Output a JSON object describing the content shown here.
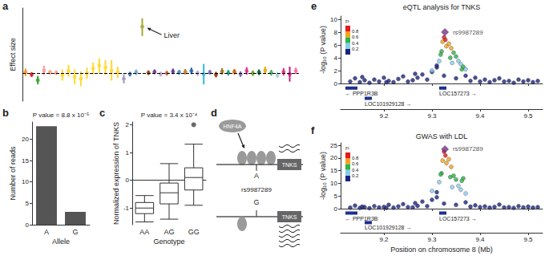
{
  "chart_data": [
    {
      "panel": "a",
      "type": "scatter",
      "ylabel": "Effect size",
      "categories": [
        null,
        null,
        null,
        null,
        null,
        null,
        null,
        null,
        null,
        null,
        null,
        null,
        null,
        null,
        null,
        null,
        null,
        null,
        null,
        null,
        null,
        null,
        null,
        null,
        null,
        null,
        null,
        null,
        null,
        null,
        null,
        null,
        null,
        null,
        null,
        null,
        null,
        null,
        null,
        null,
        null,
        null,
        null,
        null,
        null
      ],
      "values": [
        0.02,
        -0.03,
        -0.15,
        0.06,
        0.02,
        0.01,
        -0.04,
        0.05,
        -0.08,
        -0.12,
        0.0,
        0.1,
        0.16,
        0.12,
        0.06,
        0.02,
        -0.12,
        -0.02,
        0.02,
        1.0,
        0.01,
        0.03,
        -0.02,
        0.0,
        0.04,
        0.02,
        0.03,
        0.05,
        0.0,
        -0.02,
        0.02,
        -0.03,
        0.04,
        0.01,
        0.03,
        -0.02,
        0.05,
        0.0,
        0.02,
        0.06,
        0.01,
        -0.04,
        0.03,
        -0.02,
        0.05
      ],
      "lower": [
        -0.06,
        -0.08,
        -0.24,
        -0.04,
        -0.03,
        -0.04,
        -0.16,
        -0.08,
        -0.24,
        -0.28,
        -0.12,
        -0.03,
        0.0,
        -0.04,
        -0.16,
        -0.1,
        -0.22,
        -0.07,
        -0.04,
        0.8,
        -0.04,
        -0.02,
        -0.07,
        -0.05,
        -0.02,
        -0.03,
        -0.03,
        -0.02,
        -0.06,
        -0.24,
        -0.03,
        -0.09,
        -0.03,
        -0.05,
        -0.03,
        -0.08,
        -0.03,
        -0.06,
        -0.04,
        -0.02,
        -0.05,
        -0.1,
        -0.05,
        -0.18,
        -0.02
      ],
      "upper": [
        0.1,
        0.02,
        -0.06,
        0.16,
        0.07,
        0.06,
        0.08,
        0.18,
        0.08,
        0.04,
        0.12,
        0.23,
        0.32,
        0.28,
        0.28,
        0.14,
        -0.02,
        0.03,
        0.08,
        1.18,
        0.06,
        0.08,
        0.03,
        0.05,
        0.1,
        0.07,
        0.09,
        0.12,
        0.06,
        0.2,
        0.07,
        0.03,
        0.11,
        0.07,
        0.09,
        0.04,
        0.13,
        0.06,
        0.08,
        0.14,
        0.07,
        0.02,
        0.11,
        0.14,
        0.12
      ],
      "colors": [
        "#f7941d",
        "#e31a1c",
        "#33a02c",
        "#fb9a99",
        "#f4a582",
        "#f4a582",
        "#ffd92f",
        "#ffd92f",
        "#ffd92f",
        "#ffd92f",
        "#ffd92f",
        "#ffd92f",
        "#ffd92f",
        "#ffd92f",
        "#ffd92f",
        "#ffd92f",
        "#9e9ac8",
        "#4575b4",
        "#74add1",
        "#a6a832",
        "#8c510a",
        "#7b3294",
        "#c2a5cf",
        "#d6604d",
        "#5e3c99",
        "#4393c3",
        "#bf812d",
        "#2166ac",
        "#b2abd2",
        "#35b8e0",
        "#8073ac",
        "#993404",
        "#a6761d",
        "#1b9e77",
        "#d95f02",
        "#7570b3",
        "#e7298a",
        "#66a61e",
        "#006837",
        "#e6ab02",
        "#41ab5d",
        "#a6cee3",
        "#e7298a",
        "#c51b7d",
        "#f768a1"
      ],
      "ylim": [
        -0.6,
        1.4
      ],
      "hline": 0,
      "tick_labels": false,
      "grid": false,
      "annotation": {
        "text": "Liver",
        "category_index": 19
      }
    },
    {
      "panel": "b",
      "type": "bar",
      "title": "P value = 8.8 x 10⁻⁵",
      "xlabel": "Allele",
      "ylabel": "Number of reads",
      "categories": [
        "A",
        "G"
      ],
      "values": [
        23,
        3
      ],
      "color": "#555555",
      "ylim": [
        0,
        24
      ],
      "yticks": [
        0,
        5,
        10,
        15,
        20
      ],
      "grid": false
    },
    {
      "panel": "c",
      "type": "boxplot",
      "title": "P value = 3.4 x 10⁻⁴",
      "xlabel": "Genotype",
      "ylabel": "Normalized expression of TNKS",
      "categories": [
        "AA",
        "AG",
        "GG"
      ],
      "boxes": [
        [
          -1.5,
          -1.2,
          -1.0,
          -0.8,
          -0.55
        ],
        [
          -1.4,
          -0.85,
          -0.45,
          -0.1,
          0.6
        ],
        [
          -0.9,
          -0.35,
          0.1,
          0.45,
          1.3
        ]
      ],
      "outliers": [
        {
          "category": "GG",
          "value": 2.0
        }
      ],
      "ylim": [
        -1.6,
        2.1
      ],
      "yticks": [
        -1,
        0,
        1,
        2
      ],
      "grid": false
    },
    {
      "panel": "e",
      "type": "scatter",
      "title": "eQTL analysis for TNKS",
      "ylabel": "-log₁₀ (P value)",
      "x": [
        9.13,
        9.14,
        9.15,
        9.155,
        9.16,
        9.17,
        9.18,
        9.19,
        9.2,
        9.205,
        9.21,
        9.22,
        9.23,
        9.24,
        9.25,
        9.26,
        9.265,
        9.27,
        9.28,
        9.29,
        9.3,
        9.31,
        9.325,
        9.35,
        9.37,
        9.38,
        9.39,
        9.4,
        9.41,
        9.42,
        9.43,
        9.44,
        9.45,
        9.46,
        9.47,
        9.48,
        9.49,
        9.5,
        9.51,
        9.52,
        9.315,
        9.32,
        9.322,
        9.325,
        9.328,
        9.33,
        9.335,
        9.34,
        9.345,
        9.35,
        9.355,
        9.36,
        9.365,
        9.37,
        9.338,
        9.318,
        9.342,
        9.31,
        9.3,
        9.362
      ],
      "y": [
        0.3,
        0.8,
        0.2,
        1.0,
        0.5,
        0.1,
        0.6,
        0.3,
        0.9,
        0.2,
        0.4,
        0.2,
        0.7,
        1.1,
        0.3,
        0.5,
        1.5,
        0.9,
        1.4,
        0.6,
        1.8,
        2.5,
        1.2,
        0.8,
        1.2,
        0.4,
        0.9,
        0.3,
        0.6,
        0.2,
        0.5,
        0.8,
        0.3,
        0.4,
        0.1,
        0.6,
        0.3,
        0.5,
        0.2,
        0.4,
        3.5,
        5.0,
        6.5,
        7.2,
        6.8,
        5.8,
        6.2,
        5.5,
        4.8,
        4.2,
        3.5,
        3.0,
        2.6,
        2.2,
        4.0,
        4.5,
        3.2,
        2.8,
        2.0,
        2.2
      ],
      "r2": [
        0.05,
        0.05,
        0.05,
        0.05,
        0.05,
        0.05,
        0.05,
        0.05,
        0.05,
        0.05,
        0.05,
        0.05,
        0.05,
        0.05,
        0.05,
        0.05,
        0.05,
        0.05,
        0.05,
        0.05,
        0.05,
        0.05,
        0.05,
        0.05,
        0.05,
        0.05,
        0.05,
        0.05,
        0.05,
        0.05,
        0.05,
        0.05,
        0.05,
        0.05,
        0.05,
        0.05,
        0.05,
        0.05,
        0.05,
        0.05,
        0.3,
        0.5,
        0.7,
        0.9,
        0.85,
        0.7,
        0.75,
        0.65,
        0.5,
        0.45,
        0.35,
        0.3,
        0.5,
        0.3,
        0.45,
        0.55,
        0.25,
        0.15,
        0.25,
        0.5
      ],
      "lead": {
        "label": "rs9987289",
        "x": 9.327,
        "y": 8.0,
        "color": "#7b2d8e",
        "marker": "diamond"
      },
      "colorbar": {
        "title": "r²",
        "range": [
          0,
          1
        ],
        "ticks": [
          0.2,
          0.4,
          0.6,
          0.8
        ],
        "colors": [
          "#1a237e",
          "#87ceeb",
          "#2db34a",
          "#f7a21b",
          "#e41a1c"
        ]
      },
      "genes": [
        {
          "label": "← PPP1R3B",
          "start": 9.12,
          "end": 9.145
        },
        {
          "label": "LOC101929128 →",
          "start": 9.16,
          "end": 9.175
        },
        {
          "label": "LOC157273 →",
          "start": 9.315,
          "end": 9.33
        }
      ],
      "xlim": [
        9.11,
        9.53
      ],
      "xticks": [
        9.2,
        9.3,
        9.4,
        9.5
      ],
      "ylim": [
        0,
        10.5
      ],
      "yticks": [
        0,
        2,
        4,
        6,
        8,
        10
      ],
      "grid": false
    },
    {
      "panel": "f",
      "type": "scatter",
      "title": "GWAS with LDL",
      "ylabel": "-log₁₀ (P value)",
      "xlabel": "Position on chromosome 8 (Mb)",
      "x": [
        9.13,
        9.14,
        9.15,
        9.155,
        9.16,
        9.17,
        9.18,
        9.19,
        9.2,
        9.205,
        9.21,
        9.22,
        9.23,
        9.24,
        9.25,
        9.26,
        9.265,
        9.27,
        9.28,
        9.29,
        9.3,
        9.31,
        9.325,
        9.35,
        9.37,
        9.38,
        9.39,
        9.4,
        9.41,
        9.42,
        9.43,
        9.44,
        9.45,
        9.46,
        9.47,
        9.48,
        9.49,
        9.5,
        9.51,
        9.52,
        9.315,
        9.32,
        9.322,
        9.325,
        9.328,
        9.33,
        9.335,
        9.34,
        9.345,
        9.35,
        9.355,
        9.36,
        9.365,
        9.37,
        9.338,
        9.318,
        9.342,
        9.31,
        9.3,
        9.362
      ],
      "y": [
        0.4,
        1.2,
        0.3,
        0.8,
        0.6,
        0.2,
        1.0,
        0.5,
        0.7,
        0.3,
        1.5,
        0.4,
        0.9,
        1.8,
        0.6,
        0.5,
        2.2,
        1.1,
        2.8,
        1.0,
        3.5,
        4.5,
        2.0,
        1.5,
        2.5,
        0.8,
        1.3,
        0.6,
        0.9,
        0.4,
        0.7,
        1.6,
        0.5,
        0.6,
        0.3,
        1.0,
        0.5,
        0.8,
        0.4,
        0.6,
        10.5,
        14.0,
        19.0,
        22.5,
        21.0,
        18.0,
        19.5,
        16.5,
        13.0,
        11.5,
        9.0,
        7.5,
        12.0,
        6.0,
        12.5,
        13.5,
        8.5,
        6.5,
        7.0,
        11.0
      ],
      "r2": [
        0.05,
        0.05,
        0.05,
        0.05,
        0.05,
        0.05,
        0.05,
        0.05,
        0.05,
        0.05,
        0.05,
        0.05,
        0.05,
        0.05,
        0.05,
        0.05,
        0.05,
        0.05,
        0.05,
        0.05,
        0.05,
        0.05,
        0.05,
        0.05,
        0.05,
        0.05,
        0.05,
        0.05,
        0.05,
        0.05,
        0.05,
        0.05,
        0.05,
        0.05,
        0.05,
        0.05,
        0.05,
        0.05,
        0.05,
        0.05,
        0.3,
        0.5,
        0.7,
        0.9,
        0.85,
        0.7,
        0.75,
        0.65,
        0.5,
        0.45,
        0.35,
        0.3,
        0.5,
        0.3,
        0.45,
        0.55,
        0.25,
        0.15,
        0.25,
        0.5
      ],
      "lead": {
        "label": "rs9987289",
        "x": 9.327,
        "y": 23.5,
        "color": "#7b2d8e",
        "marker": "diamond"
      },
      "colorbar": {
        "title": "r²",
        "range": [
          0,
          1
        ],
        "ticks": [
          0.2,
          0.4,
          0.6,
          0.8
        ],
        "colors": [
          "#1a237e",
          "#87ceeb",
          "#2db34a",
          "#f7a21b",
          "#e41a1c"
        ]
      },
      "genes": [
        {
          "label": "← PPP1R3B",
          "start": 9.12,
          "end": 9.145
        },
        {
          "label": "LOC101929128 →",
          "start": 9.16,
          "end": 9.175
        },
        {
          "label": "LOC157273 →",
          "start": 9.315,
          "end": 9.33
        }
      ],
      "xlim": [
        9.11,
        9.53
      ],
      "xticks": [
        9.2,
        9.3,
        9.4,
        9.5
      ],
      "ylim": [
        0,
        26
      ],
      "yticks": [
        0,
        5,
        10,
        15,
        20,
        25
      ],
      "grid": false
    }
  ],
  "diagram": {
    "panel": "d",
    "factor": "HNF4A",
    "snp": "rs9987289",
    "alleles": [
      "A",
      "G"
    ],
    "gene": "TNKS"
  }
}
